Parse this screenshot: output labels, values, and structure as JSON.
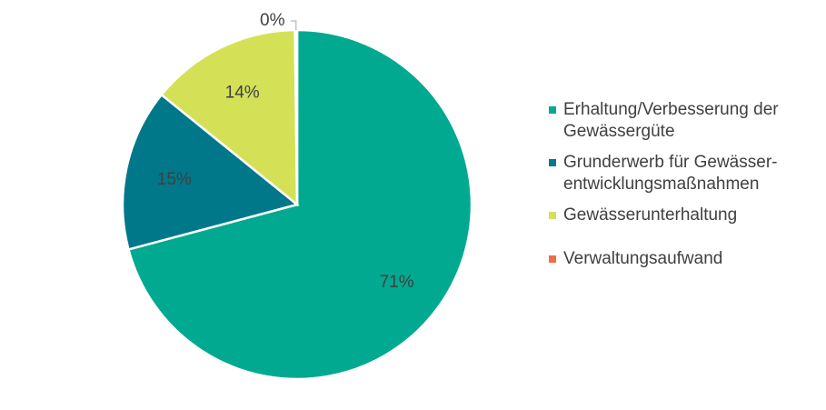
{
  "chart_data": {
    "type": "pie",
    "categories": [
      "Erhaltung/Verbesserung der Gewässergüte",
      "Grunderwerb für Gewässer-entwicklungsmaßnahmen",
      "Gewässerunterhaltung",
      "Verwaltungsaufwand"
    ],
    "values": [
      71,
      15,
      14,
      0.2
    ],
    "data_labels": [
      "71%",
      "15%",
      "14%",
      "0%"
    ],
    "colors": [
      "#00a990",
      "#00788a",
      "#d4e157",
      "#ef6c4a"
    ],
    "legend_position": "right"
  },
  "legend": {
    "items": [
      {
        "line1": "Erhaltung/Verbesserung der",
        "line2": "Gewässergüte",
        "color": "#00a990"
      },
      {
        "line1": "Grunderwerb für Gewässer-",
        "line2": "entwicklungsmaßnahmen",
        "color": "#00788a"
      },
      {
        "line1": "Gewässerunterhaltung",
        "line2": "",
        "color": "#d4e157"
      },
      {
        "line1": "Verwaltungsaufwand",
        "line2": "",
        "color": "#ef6c4a"
      }
    ]
  }
}
